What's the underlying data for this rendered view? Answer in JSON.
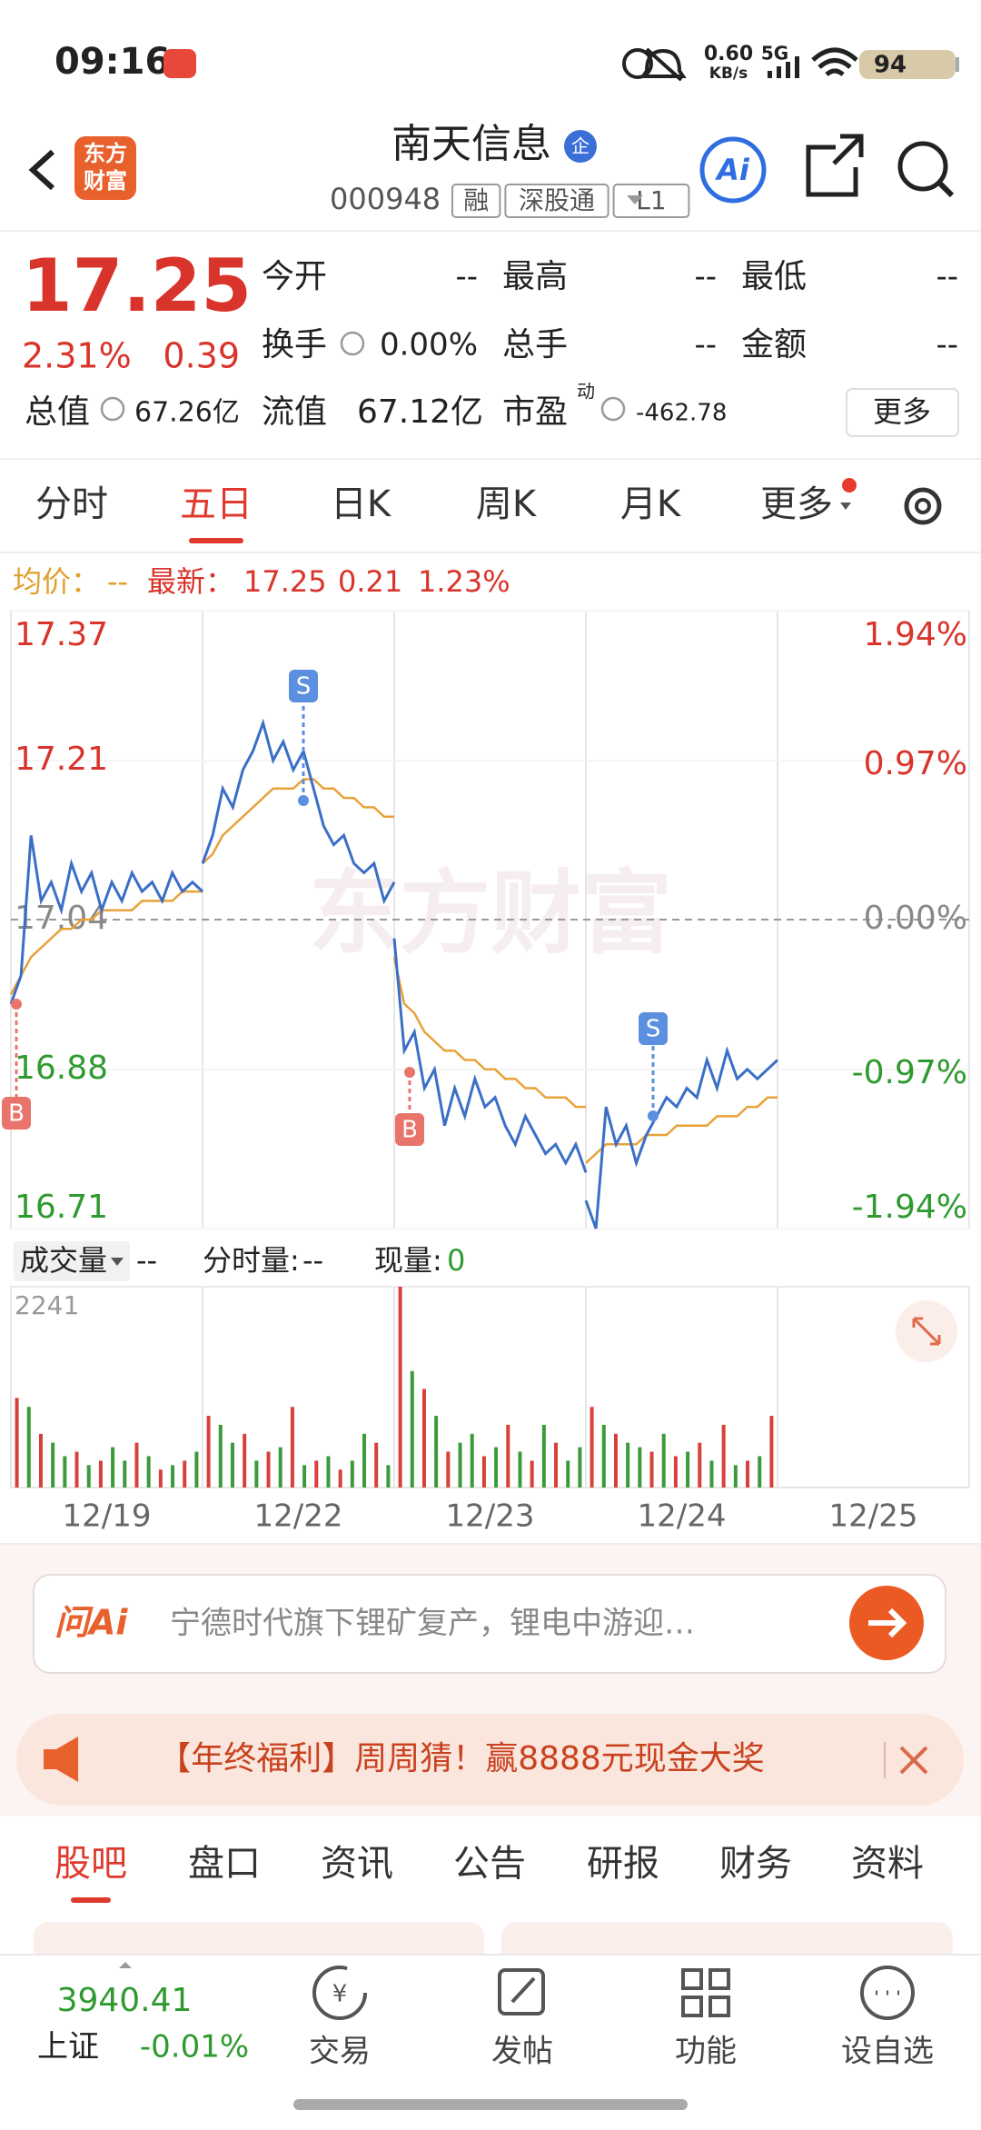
{
  "status_bar": {
    "time": "09:16",
    "speed": "0.60",
    "speed_unit": "KB/s",
    "network": "5G",
    "battery": "94"
  },
  "header": {
    "logo": [
      "东方",
      "财富"
    ],
    "name": "南天信息",
    "badge": "企",
    "code": "000948",
    "tags": [
      "融",
      "深股通",
      "L1"
    ]
  },
  "quote": {
    "price": "17.25",
    "change_pct": "2.31%",
    "change": "0.39",
    "fields": [
      {
        "label": "今开",
        "value": "--"
      },
      {
        "label": "最高",
        "value": "--"
      },
      {
        "label": "最低",
        "value": "--"
      },
      {
        "label": "换手",
        "value": "0.00%"
      },
      {
        "label": "总手",
        "value": "--"
      },
      {
        "label": "金额",
        "value": "--"
      }
    ],
    "market_cap": {
      "label": "总值",
      "value": "67.26亿"
    },
    "float_cap": {
      "label": "流值",
      "value": "67.12亿"
    },
    "pe": {
      "label": "市盈",
      "note": "动",
      "value": "-462.78"
    },
    "more": "更多"
  },
  "tabs": {
    "items": [
      "分时",
      "五日",
      "日K",
      "周K",
      "月K",
      "更多"
    ],
    "active": 1
  },
  "summary": {
    "avg": "--",
    "latest": "17.25",
    "change": "0.21",
    "change_pct": "1.23%"
  },
  "chart_data": [
    {
      "type": "line",
      "watermark": "东方财富",
      "ylim": [
        16.71,
        17.37
      ],
      "yticks": [
        16.71,
        16.88,
        17.04,
        17.21,
        17.37
      ],
      "y2lim": [
        -1.94,
        1.94
      ],
      "y2ticks": [
        {
          "value": -1.94,
          "label": "-1.94%"
        },
        {
          "value": -0.97,
          "label": "-0.97%"
        },
        {
          "value": 0,
          "label": "0.00%"
        },
        {
          "value": 0.97,
          "label": "0.97%"
        },
        {
          "value": 1.94,
          "label": "1.94%"
        }
      ],
      "series": [
        {
          "name": "最新：",
          "color": "#3b6fc6",
          "values": [
            [
              16.95,
              16.98,
              17.13,
              17.06,
              17.08,
              17.05,
              17.1,
              17.07,
              17.09,
              17.05,
              17.08,
              17.06,
              17.09,
              17.07,
              17.08,
              17.06,
              17.09,
              17.07,
              17.08,
              17.07
            ],
            [
              17.1,
              17.13,
              17.18,
              17.16,
              17.2,
              17.22,
              17.25,
              17.21,
              17.23,
              17.2,
              17.22,
              17.18,
              17.14,
              17.12,
              17.13,
              17.1,
              17.09,
              17.1,
              17.06,
              17.08
            ],
            [
              17.02,
              16.9,
              16.92,
              16.86,
              16.88,
              16.82,
              16.86,
              16.83,
              16.87,
              16.84,
              16.85,
              16.82,
              16.8,
              16.83,
              16.81,
              16.79,
              16.8,
              16.78,
              16.8,
              16.77
            ],
            [
              16.74,
              16.71,
              16.84,
              16.8,
              16.82,
              16.78,
              16.81,
              16.83,
              16.85,
              16.84,
              16.86,
              16.85,
              16.89,
              16.86,
              16.9,
              16.87,
              16.88,
              16.87,
              16.88,
              16.89
            ],
            []
          ]
        },
        {
          "name": "均价：",
          "color": "#e8a23a",
          "values": [
            [
              16.96,
              16.98,
              17.0,
              17.01,
              17.02,
              17.03,
              17.03,
              17.04,
              17.04,
              17.05,
              17.05,
              17.05,
              17.05,
              17.06,
              17.06,
              17.06,
              17.06,
              17.07,
              17.07,
              17.07
            ],
            [
              17.1,
              17.11,
              17.13,
              17.14,
              17.15,
              17.16,
              17.17,
              17.18,
              17.18,
              17.18,
              17.19,
              17.19,
              17.18,
              17.18,
              17.17,
              17.17,
              17.16,
              17.16,
              17.15,
              17.15
            ],
            [
              17.0,
              16.95,
              16.94,
              16.92,
              16.91,
              16.9,
              16.9,
              16.89,
              16.89,
              16.88,
              16.88,
              16.87,
              16.87,
              16.86,
              16.86,
              16.85,
              16.85,
              16.85,
              16.84,
              16.84
            ],
            [
              16.78,
              16.79,
              16.8,
              16.8,
              16.8,
              16.8,
              16.81,
              16.81,
              16.81,
              16.82,
              16.82,
              16.82,
              16.82,
              16.83,
              16.83,
              16.83,
              16.84,
              16.84,
              16.85,
              16.85
            ],
            []
          ]
        }
      ],
      "annotations": [
        "B",
        "S",
        "B",
        "S"
      ]
    },
    {
      "type": "bar",
      "categories": [
        "12/19",
        "12/22",
        "12/23",
        "12/24",
        "12/25"
      ],
      "ylim": [
        0,
        2241
      ],
      "yticks": [
        2241
      ],
      "selector": "成交量",
      "value": "--",
      "period_label": "分时量:",
      "period_value": "--",
      "current_label": "现量:",
      "current_value": "0",
      "series": [
        {
          "color": "#d8403a",
          "values": [
            [
              1000,
              null,
              600,
              null,
              null,
              400,
              null,
              300,
              null,
              null,
              500,
              null,
              200,
              null,
              300,
              null
            ],
            [
              800,
              null,
              null,
              600,
              null,
              400,
              null,
              900,
              null,
              300,
              null,
              200,
              null,
              null,
              500,
              null
            ],
            [
              2241,
              null,
              1100,
              null,
              400,
              null,
              null,
              350,
              null,
              700,
              null,
              300,
              null,
              500,
              null,
              null
            ],
            [
              900,
              null,
              600,
              null,
              null,
              400,
              null,
              350,
              null,
              500,
              null,
              700,
              null,
              300,
              null,
              800
            ],
            []
          ]
        },
        {
          "color": "#3c9a3a",
          "values": [
            [
              null,
              900,
              null,
              500,
              350,
              null,
              250,
              null,
              450,
              300,
              null,
              350,
              null,
              250,
              null,
              400
            ],
            [
              null,
              700,
              500,
              null,
              300,
              null,
              450,
              null,
              250,
              null,
              350,
              null,
              300,
              600,
              null,
              250
            ],
            [
              null,
              1300,
              null,
              800,
              null,
              500,
              600,
              null,
              450,
              null,
              400,
              null,
              700,
              null,
              300,
              450
            ],
            [
              null,
              700,
              null,
              500,
              450,
              null,
              600,
              null,
              400,
              null,
              300,
              null,
              250,
              null,
              350,
              null
            ],
            []
          ]
        }
      ]
    }
  ],
  "ai_bar": {
    "logo": "问Ai",
    "text": "宁德时代旗下锂矿复产，锂电中游迎…"
  },
  "banner": {
    "text": "【年终福利】周周猜！赢8888元现金大奖"
  },
  "section_tabs": {
    "items": [
      "股吧",
      "盘口",
      "资讯",
      "公告",
      "研报",
      "财务",
      "资料"
    ],
    "active": 0
  },
  "bottom_nav": {
    "index_value": "3940.41",
    "index_name": "上证",
    "index_change": "-0.01%",
    "items": [
      "交易",
      "发帖",
      "功能",
      "设自选"
    ]
  }
}
